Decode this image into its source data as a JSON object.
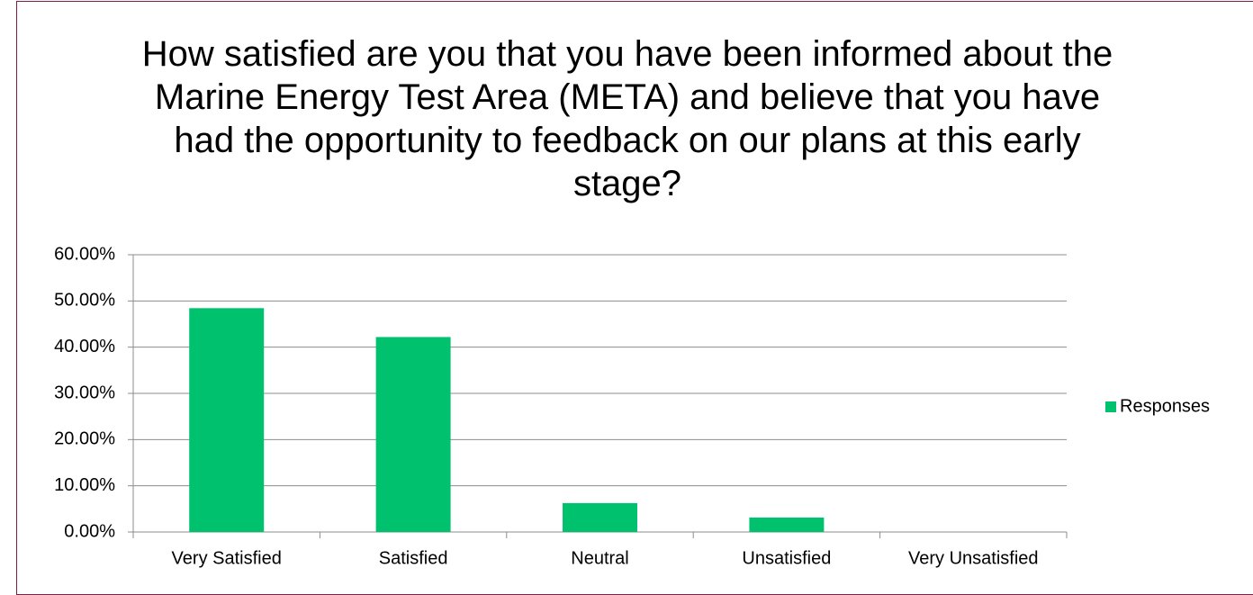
{
  "chart_data": {
    "type": "bar",
    "title": "How satisfied are you that you have been informed about the Marine Energy Test Area (META) and believe that you have had the opportunity to feedback on our plans at this early stage?",
    "categories": [
      "Very Satisfied",
      "Satisfied",
      "Neutral",
      "Unsatisfied",
      "Very Unsatisfied"
    ],
    "series": [
      {
        "name": "Responses",
        "color": "#00c16e",
        "values": [
          48.44,
          42.19,
          6.25,
          3.13,
          0
        ]
      }
    ],
    "ylim": [
      0,
      60
    ],
    "yticks": [
      {
        "value": 0,
        "label": "0.00%"
      },
      {
        "value": 10,
        "label": "10.00%"
      },
      {
        "value": 20,
        "label": "20.00%"
      },
      {
        "value": 30,
        "label": "30.00%"
      },
      {
        "value": 40,
        "label": "40.00%"
      },
      {
        "value": 50,
        "label": "50.00%"
      },
      {
        "value": 60,
        "label": "60.00%"
      }
    ],
    "grid": true,
    "legend": "right"
  }
}
